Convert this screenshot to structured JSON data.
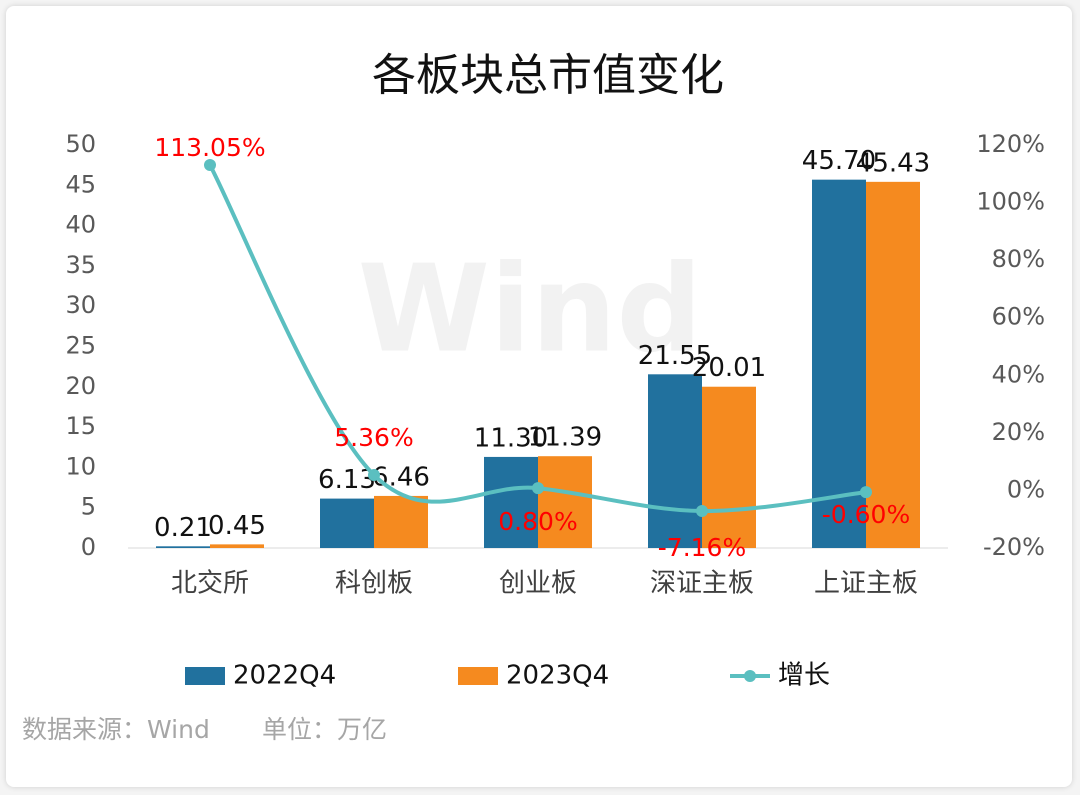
{
  "chart_data": {
    "type": "bar",
    "title": "各板块总市值变化",
    "watermark": "Wind",
    "categories": [
      "北交所",
      "科创板",
      "创业板",
      "深证主板",
      "上证主板"
    ],
    "series": [
      {
        "name": "2022Q4",
        "type": "bar",
        "color": "#21719e",
        "values": [
          0.21,
          6.13,
          11.3,
          21.55,
          45.7
        ],
        "value_labels": [
          "0.21",
          "6.13",
          "11.30",
          "21.55",
          "45.70"
        ]
      },
      {
        "name": "2023Q4",
        "type": "bar",
        "color": "#f58a1f",
        "values": [
          0.45,
          6.46,
          11.39,
          20.01,
          45.43
        ],
        "value_labels": [
          "0.45",
          "6.46",
          "11.39",
          "20.01",
          "45.43"
        ]
      },
      {
        "name": "增长",
        "type": "line",
        "axis": "y2",
        "color": "#5bbfc0",
        "values": [
          113.05,
          5.36,
          0.8,
          -7.16,
          -0.6
        ],
        "value_labels": [
          "113.05%",
          "5.36%",
          "0.80%",
          "-7.16%",
          "-0.60%"
        ],
        "label_color": "#ff0000"
      }
    ],
    "ylim": [
      0,
      50
    ],
    "yticks": [
      0,
      5,
      10,
      15,
      20,
      25,
      30,
      35,
      40,
      45,
      50
    ],
    "y2lim": [
      -20,
      120
    ],
    "y2ticks": [
      {
        "value": -20,
        "label": "-20%"
      },
      {
        "value": 0,
        "label": "0%"
      },
      {
        "value": 20,
        "label": "20%"
      },
      {
        "value": 40,
        "label": "40%"
      },
      {
        "value": 60,
        "label": "60%"
      },
      {
        "value": 80,
        "label": "80%"
      },
      {
        "value": 100,
        "label": "100%"
      },
      {
        "value": 120,
        "label": "120%"
      }
    ],
    "grid": false,
    "legend": "bottom",
    "source": "数据来源：Wind",
    "unit": "单位：万亿"
  }
}
